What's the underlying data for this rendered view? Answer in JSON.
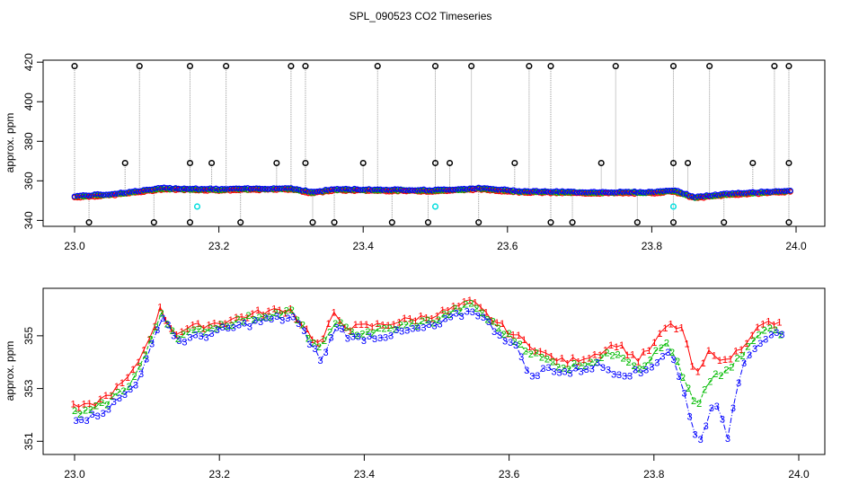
{
  "title": "SPL_090523  CO2 Timeseries",
  "colors": {
    "series_1": "#ff0000",
    "series_2": "#00bb00",
    "series_3": "#0000ff",
    "outlier": "#000000",
    "cyan": "#00dddd",
    "stems": "#999999"
  },
  "chart_data": [
    {
      "type": "scatter",
      "ylabel": "approx. ppm",
      "xlabel": "",
      "xlim": [
        23.0,
        24.0
      ],
      "ylim": [
        337,
        421
      ],
      "x_ticks": [
        "23.0",
        "23.2",
        "23.4",
        "23.6",
        "23.8",
        "24.0"
      ],
      "y_ticks": [
        "340",
        "360",
        "380",
        "400",
        "420"
      ],
      "grid": false,
      "baseline": {
        "x": [
          23.0,
          23.05,
          23.1,
          23.12,
          23.2,
          23.3,
          23.33,
          23.36,
          23.5,
          23.56,
          23.62,
          23.7,
          23.8,
          23.83,
          23.86,
          23.9,
          24.0
        ],
        "y": [
          352,
          353,
          355,
          356,
          355.5,
          356,
          354,
          355.5,
          355,
          356,
          354.5,
          354,
          354,
          355,
          351.5,
          353,
          355
        ]
      },
      "outliers_high": [
        23.0,
        23.09,
        23.16,
        23.21,
        23.3,
        23.32,
        23.42,
        23.5,
        23.55,
        23.63,
        23.66,
        23.75,
        23.83,
        23.88,
        23.97,
        23.99
      ],
      "outliers_mid": [
        23.07,
        23.16,
        23.19,
        23.28,
        23.32,
        23.4,
        23.5,
        23.52,
        23.61,
        23.73,
        23.83,
        23.85,
        23.94,
        23.99
      ],
      "outliers_low": [
        23.02,
        23.11,
        23.16,
        23.23,
        23.33,
        23.36,
        23.44,
        23.49,
        23.56,
        23.66,
        23.69,
        23.78,
        23.83,
        23.9,
        23.99
      ],
      "cyan_points": [
        {
          "x": 23.17,
          "y": 347
        },
        {
          "x": 23.5,
          "y": 347
        },
        {
          "x": 23.83,
          "y": 347
        }
      ]
    },
    {
      "type": "line",
      "ylabel": "approx. ppm",
      "xlabel": "",
      "xlim": [
        23.0,
        24.0
      ],
      "ylim": [
        350.5,
        356.8
      ],
      "x_ticks": [
        "23.0",
        "23.2",
        "23.4",
        "23.6",
        "23.8",
        "24.0"
      ],
      "y_ticks": [
        "351",
        "353",
        "355"
      ],
      "grid": false,
      "series": [
        {
          "name": "1",
          "x": [
            23.0,
            23.02,
            23.04,
            23.06,
            23.08,
            23.1,
            23.12,
            23.14,
            23.16,
            23.2,
            23.26,
            23.3,
            23.32,
            23.34,
            23.36,
            23.38,
            23.42,
            23.46,
            23.5,
            23.52,
            23.55,
            23.58,
            23.61,
            23.63,
            23.65,
            23.68,
            23.72,
            23.75,
            23.78,
            23.8,
            23.82,
            23.84,
            23.86,
            23.88,
            23.9,
            23.92,
            23.94,
            23.96,
            23.98
          ],
          "values": [
            352.3,
            352.3,
            352.6,
            353.0,
            353.5,
            354.6,
            356.0,
            355.1,
            355.3,
            355.5,
            355.9,
            356.0,
            355.3,
            354.6,
            355.8,
            355.3,
            355.4,
            355.6,
            355.8,
            356.0,
            356.3,
            355.6,
            355.0,
            354.7,
            354.3,
            354.0,
            354.3,
            354.7,
            354.1,
            354.6,
            355.4,
            355.3,
            353.4,
            354.5,
            354.0,
            354.5,
            355.2,
            355.5,
            355.4
          ]
        },
        {
          "name": "2",
          "x": [
            23.0,
            23.02,
            23.04,
            23.06,
            23.08,
            23.1,
            23.12,
            23.14,
            23.16,
            23.2,
            23.26,
            23.3,
            23.32,
            23.34,
            23.36,
            23.38,
            23.42,
            23.46,
            23.5,
            23.52,
            23.55,
            23.58,
            23.61,
            23.63,
            23.65,
            23.68,
            23.72,
            23.75,
            23.78,
            23.8,
            23.82,
            23.84,
            23.86,
            23.88,
            23.9,
            23.92,
            23.94,
            23.96,
            23.98
          ],
          "values": [
            352.1,
            352.1,
            352.4,
            352.8,
            353.3,
            354.4,
            355.9,
            355.0,
            355.1,
            355.4,
            355.8,
            355.9,
            355.1,
            354.4,
            355.6,
            355.1,
            355.2,
            355.4,
            355.6,
            355.9,
            356.2,
            355.4,
            354.8,
            354.4,
            354.1,
            353.8,
            354.1,
            354.4,
            353.8,
            354.3,
            354.8,
            353.4,
            352.2,
            353.5,
            353.6,
            354.2,
            354.9,
            355.3,
            355.1
          ]
        },
        {
          "name": "3",
          "x": [
            23.0,
            23.02,
            23.04,
            23.06,
            23.08,
            23.1,
            23.12,
            23.14,
            23.16,
            23.2,
            23.26,
            23.3,
            23.32,
            23.34,
            23.36,
            23.38,
            23.42,
            23.46,
            23.5,
            23.52,
            23.55,
            23.58,
            23.61,
            23.63,
            23.65,
            23.68,
            23.72,
            23.75,
            23.78,
            23.8,
            23.82,
            23.84,
            23.86,
            23.88,
            23.9,
            23.92,
            23.94,
            23.96,
            23.98
          ],
          "values": [
            351.9,
            351.9,
            352.2,
            352.6,
            353.1,
            354.2,
            355.8,
            354.8,
            354.9,
            355.2,
            355.6,
            355.7,
            354.9,
            354.0,
            355.4,
            354.9,
            355.0,
            355.2,
            355.4,
            355.7,
            356.0,
            355.2,
            354.5,
            353.4,
            353.8,
            353.6,
            353.9,
            353.6,
            353.6,
            354.0,
            354.5,
            352.8,
            350.8,
            352.6,
            351.2,
            354.0,
            354.7,
            355.1,
            354.9
          ]
        }
      ]
    }
  ]
}
